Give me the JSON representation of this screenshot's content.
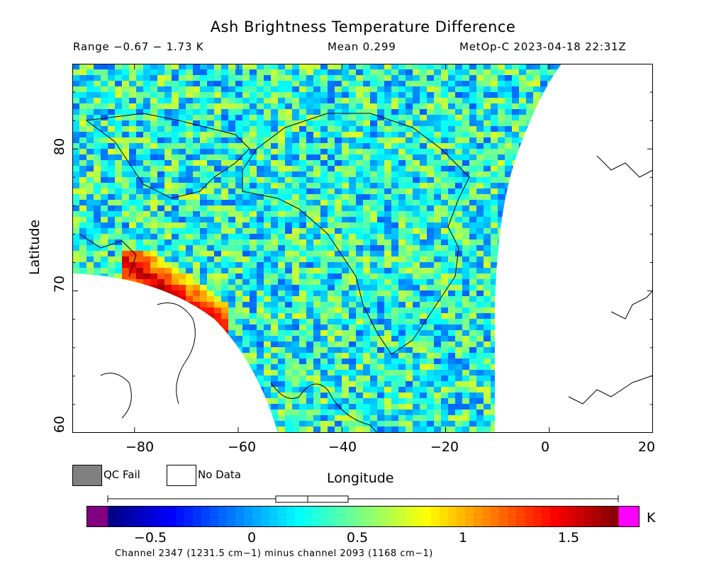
{
  "chart_data": {
    "type": "heatmap",
    "title": "Ash Brightness Temperature Difference",
    "subtitle": {
      "range": "Range −0.67 − 1.73 K",
      "mean": "Mean 0.299",
      "satellite": "MetOp-C 2023-04-18 22:31Z"
    },
    "xlabel": "Longitude",
    "ylabel": "Latitude",
    "xlim": [
      -92,
      20
    ],
    "ylim": [
      60,
      86
    ],
    "x_ticks": [
      "−80",
      "−60",
      "−40",
      "−20",
      "0",
      "20"
    ],
    "y_ticks": [
      "60",
      "70",
      "80"
    ],
    "colorbar": {
      "min": -0.67,
      "max": 1.73,
      "ticks": [
        "−0.5",
        "0",
        "0.5",
        "1",
        "1.5"
      ],
      "unit": "K",
      "range_box": {
        "whisker_low": -0.67,
        "q1": 0.12,
        "median": 0.27,
        "q3": 0.46,
        "whisker_high": 1.73
      },
      "underflow_color": "#800080",
      "overflow_color": "#ff00ff"
    },
    "legend": {
      "qc_fail": "QC Fail",
      "no_data": "No Data",
      "qc_fail_color": "#808080",
      "no_data_color": "#ffffff"
    },
    "footnote": "Channel 2347 (1231.5 cm−1) minus channel 2093 (1168 cm−1)",
    "background_value": 0.3,
    "plume": {
      "lon_range": [
        -82,
        -62
      ],
      "lat_range": [
        66,
        73
      ],
      "value": 1.55
    }
  }
}
